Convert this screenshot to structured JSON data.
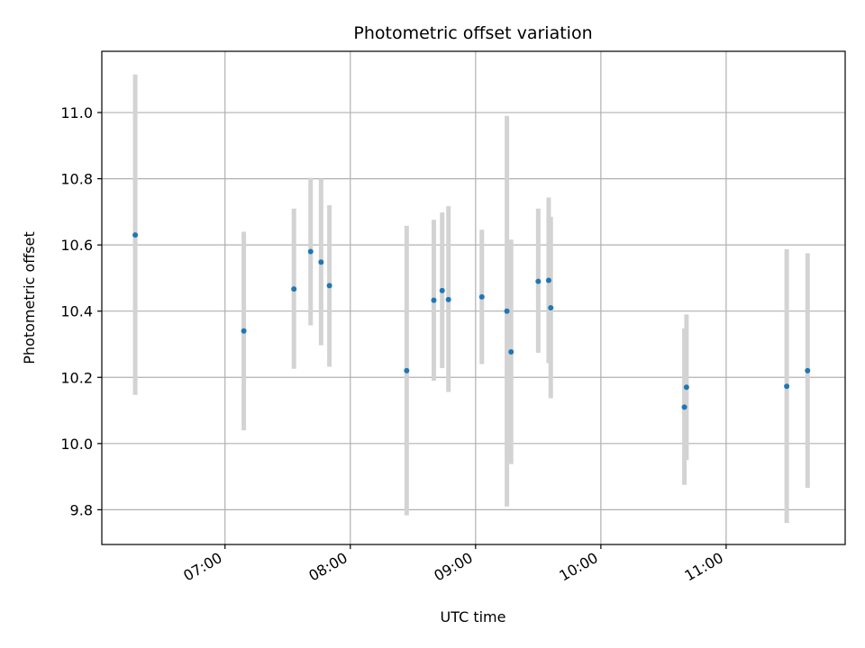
{
  "chart_data": {
    "type": "scatter",
    "title": "Photometric offset variation",
    "xlabel": "UTC time",
    "ylabel": "Photometric offset",
    "x_ticks": [
      "07:00",
      "08:00",
      "09:00",
      "10:00",
      "11:00"
    ],
    "y_ticks": [
      "9.8",
      "10.0",
      "10.2",
      "10.4",
      "10.6",
      "10.8",
      "11.0"
    ],
    "xlim": [
      "06:01",
      "11:57"
    ],
    "ylim": [
      9.695,
      11.185
    ],
    "grid": true,
    "point_color": "#1f77b4",
    "errorbar_color": "#d3d3d3",
    "points": [
      {
        "x": "06:17",
        "y": 10.63,
        "low": 10.147,
        "high": 11.115
      },
      {
        "x": "07:09",
        "y": 10.34,
        "low": 10.04,
        "high": 10.64
      },
      {
        "x": "07:33",
        "y": 10.467,
        "low": 10.226,
        "high": 10.71
      },
      {
        "x": "07:41",
        "y": 10.58,
        "low": 10.357,
        "high": 10.803
      },
      {
        "x": "07:46",
        "y": 10.548,
        "low": 10.297,
        "high": 10.8
      },
      {
        "x": "07:50",
        "y": 10.477,
        "low": 10.232,
        "high": 10.72
      },
      {
        "x": "08:27",
        "y": 10.22,
        "low": 9.783,
        "high": 10.658
      },
      {
        "x": "08:40",
        "y": 10.433,
        "low": 10.19,
        "high": 10.676
      },
      {
        "x": "08:44",
        "y": 10.462,
        "low": 10.228,
        "high": 10.698
      },
      {
        "x": "08:47",
        "y": 10.435,
        "low": 10.156,
        "high": 10.717
      },
      {
        "x": "09:03",
        "y": 10.443,
        "low": 10.24,
        "high": 10.646
      },
      {
        "x": "09:15",
        "y": 10.4,
        "low": 9.81,
        "high": 10.99
      },
      {
        "x": "09:17",
        "y": 10.277,
        "low": 9.938,
        "high": 10.616
      },
      {
        "x": "09:30",
        "y": 10.49,
        "low": 10.274,
        "high": 10.71
      },
      {
        "x": "09:35",
        "y": 10.493,
        "low": 10.243,
        "high": 10.743
      },
      {
        "x": "09:36",
        "y": 10.41,
        "low": 10.137,
        "high": 10.685
      },
      {
        "x": "10:40",
        "y": 10.11,
        "low": 9.875,
        "high": 10.348
      },
      {
        "x": "10:41",
        "y": 10.17,
        "low": 9.95,
        "high": 10.39
      },
      {
        "x": "11:29",
        "y": 10.173,
        "low": 9.76,
        "high": 10.587
      },
      {
        "x": "11:39",
        "y": 10.22,
        "low": 9.866,
        "high": 10.575
      }
    ]
  }
}
